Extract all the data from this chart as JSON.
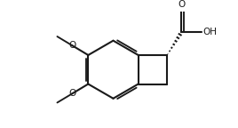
{
  "background_color": "#ffffff",
  "line_color": "#1a1a1a",
  "lw": 1.5,
  "fs": 7.5,
  "figsize": [
    2.68,
    1.44
  ],
  "dpi": 100,
  "xlim": [
    -2.8,
    3.2
  ],
  "ylim": [
    -2.0,
    2.0
  ]
}
